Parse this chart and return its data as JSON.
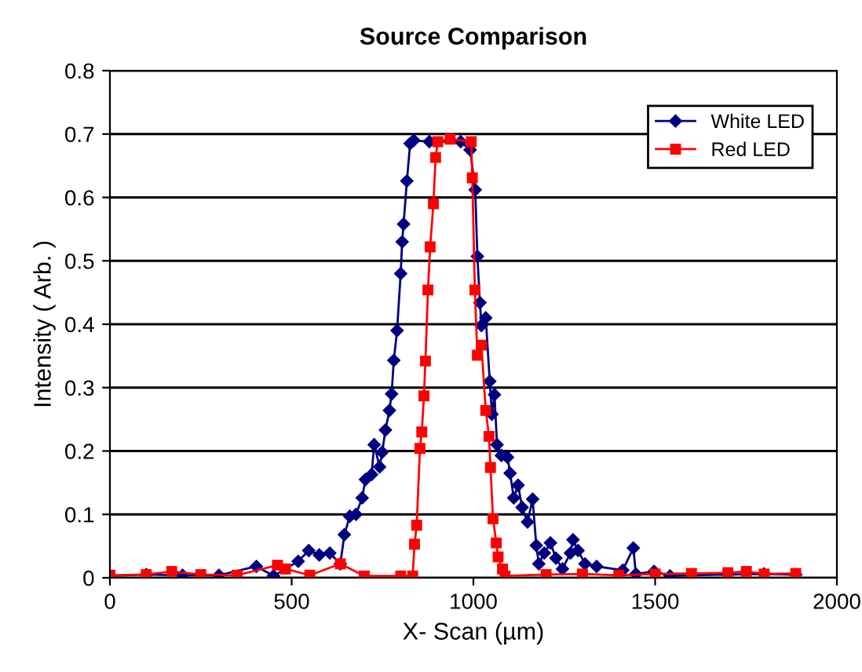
{
  "chart_data": {
    "type": "line",
    "title": "Source Comparison",
    "xlabel": "X- Scan (µm)",
    "ylabel": "Intensity ( Arb. )",
    "xlim": [
      0,
      2000
    ],
    "xticks": [
      0,
      500,
      1000,
      1500,
      2000
    ],
    "ylim": [
      0,
      0.8
    ],
    "yticks": [
      0,
      0.1,
      0.2,
      0.3,
      0.4,
      0.5,
      0.6,
      0.7,
      0.8
    ],
    "grid": "y",
    "legend": "top right",
    "series": [
      {
        "name": "White LED",
        "color": "#000080",
        "marker": "diamond",
        "x": [
          0,
          100,
          200,
          300,
          403,
          450,
          518,
          547,
          576,
          605,
          634,
          645,
          660,
          677,
          694,
          703,
          720,
          727,
          742,
          749,
          758,
          769,
          775,
          781,
          790,
          800,
          804,
          808,
          817,
          826,
          836,
          879,
          965,
          991,
          1005,
          1011,
          1018,
          1022,
          1034,
          1045,
          1051,
          1058,
          1065,
          1077,
          1094,
          1101,
          1111,
          1123,
          1134,
          1149,
          1163,
          1173,
          1180,
          1195,
          1212,
          1227,
          1245,
          1267,
          1274,
          1288,
          1307,
          1339,
          1411,
          1440,
          1447,
          1497,
          1541,
          1600,
          1700,
          1800,
          1887
        ],
        "values": [
          0.003,
          0.005,
          0.004,
          0.004,
          0.018,
          0.003,
          0.026,
          0.043,
          0.036,
          0.039,
          0.022,
          0.068,
          0.097,
          0.1,
          0.126,
          0.155,
          0.163,
          0.21,
          0.175,
          0.198,
          0.233,
          0.264,
          0.29,
          0.343,
          0.39,
          0.48,
          0.53,
          0.558,
          0.626,
          0.685,
          0.69,
          0.688,
          0.688,
          0.675,
          0.612,
          0.507,
          0.434,
          0.398,
          0.41,
          0.31,
          0.258,
          0.289,
          0.21,
          0.193,
          0.19,
          0.165,
          0.126,
          0.146,
          0.111,
          0.088,
          0.124,
          0.051,
          0.022,
          0.039,
          0.055,
          0.031,
          0.014,
          0.039,
          0.06,
          0.043,
          0.022,
          0.018,
          0.012,
          0.047,
          0.006,
          0.01,
          0.003,
          0.004,
          0.005,
          0.006,
          0.005
        ]
      },
      {
        "name": "Red LED",
        "color": "#ff0000",
        "marker": "square",
        "x": [
          0,
          100,
          170,
          250,
          350,
          461,
          483,
          550,
          634,
          700,
          800,
          833,
          838,
          844,
          853,
          858,
          864,
          868,
          875,
          881,
          890,
          896,
          902,
          936,
          994,
          997,
          1004,
          1011,
          1022,
          1034,
          1043,
          1047,
          1054,
          1063,
          1068,
          1080,
          1087,
          1200,
          1300,
          1400,
          1500,
          1600,
          1700,
          1751,
          1800,
          1887
        ],
        "values": [
          0.004,
          0.005,
          0.01,
          0.005,
          0.004,
          0.02,
          0.014,
          0.004,
          0.022,
          0.003,
          0.003,
          0.003,
          0.053,
          0.083,
          0.204,
          0.23,
          0.287,
          0.342,
          0.454,
          0.522,
          0.59,
          0.663,
          0.688,
          0.692,
          0.688,
          0.631,
          0.454,
          0.351,
          0.367,
          0.264,
          0.223,
          0.174,
          0.093,
          0.055,
          0.033,
          0.014,
          0.003,
          0.005,
          0.006,
          0.004,
          0.006,
          0.007,
          0.008,
          0.01,
          0.006,
          0.007
        ]
      }
    ]
  }
}
